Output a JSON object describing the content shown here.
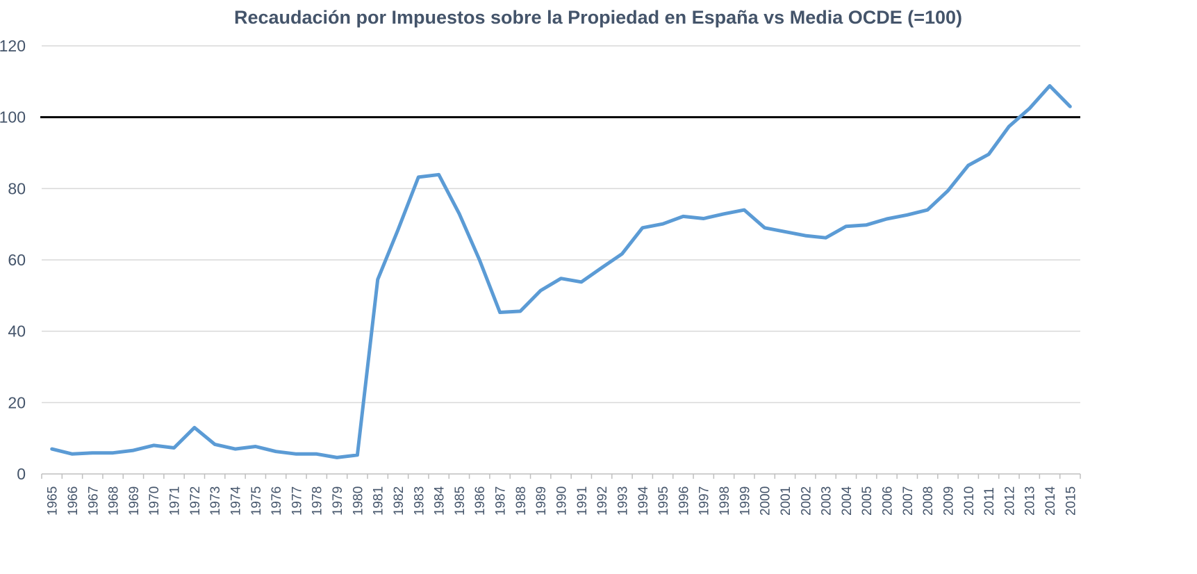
{
  "chart_data": {
    "type": "line",
    "title": "Recaudación por Impuestos sobre la Propiedad en España vs Media OCDE (=100)",
    "xlabel": "",
    "ylabel": "",
    "ylim": [
      0,
      120
    ],
    "yticks": [
      0,
      20,
      40,
      60,
      80,
      100,
      120
    ],
    "grid": true,
    "legend": "none",
    "categories": [
      "1965",
      "1966",
      "1967",
      "1968",
      "1969",
      "1970",
      "1971",
      "1972",
      "1973",
      "1974",
      "1975",
      "1976",
      "1977",
      "1978",
      "1979",
      "1980",
      "1981",
      "1982",
      "1983",
      "1984",
      "1985",
      "1986",
      "1987",
      "1988",
      "1989",
      "1990",
      "1991",
      "1992",
      "1993",
      "1994",
      "1995",
      "1996",
      "1997",
      "1998",
      "1999",
      "2000",
      "2001",
      "2002",
      "2003",
      "2004",
      "2005",
      "2006",
      "2007",
      "2008",
      "2009",
      "2010",
      "2011",
      "2012",
      "2013",
      "2014",
      "2015"
    ],
    "series": [
      {
        "name": "España",
        "color": "#5b9bd5",
        "values": [
          7.0,
          5.6,
          5.9,
          5.9,
          6.6,
          8.0,
          7.3,
          13.0,
          8.3,
          7.0,
          7.7,
          6.3,
          5.6,
          5.6,
          4.6,
          5.3,
          54.5,
          68.5,
          83.2,
          83.9,
          73.0,
          60.0,
          45.3,
          45.6,
          51.4,
          54.8,
          53.8,
          57.8,
          61.7,
          69.0,
          70.1,
          72.2,
          71.6,
          72.9,
          74.0,
          69.0,
          67.9,
          66.8,
          66.2,
          69.4,
          69.8,
          71.5,
          72.6,
          74.0,
          79.4,
          86.5,
          89.6,
          97.4,
          102.4,
          108.8,
          103.0
        ]
      }
    ],
    "reference_line": {
      "name": "Media OCDE",
      "value": 100,
      "color": "#000000"
    }
  }
}
